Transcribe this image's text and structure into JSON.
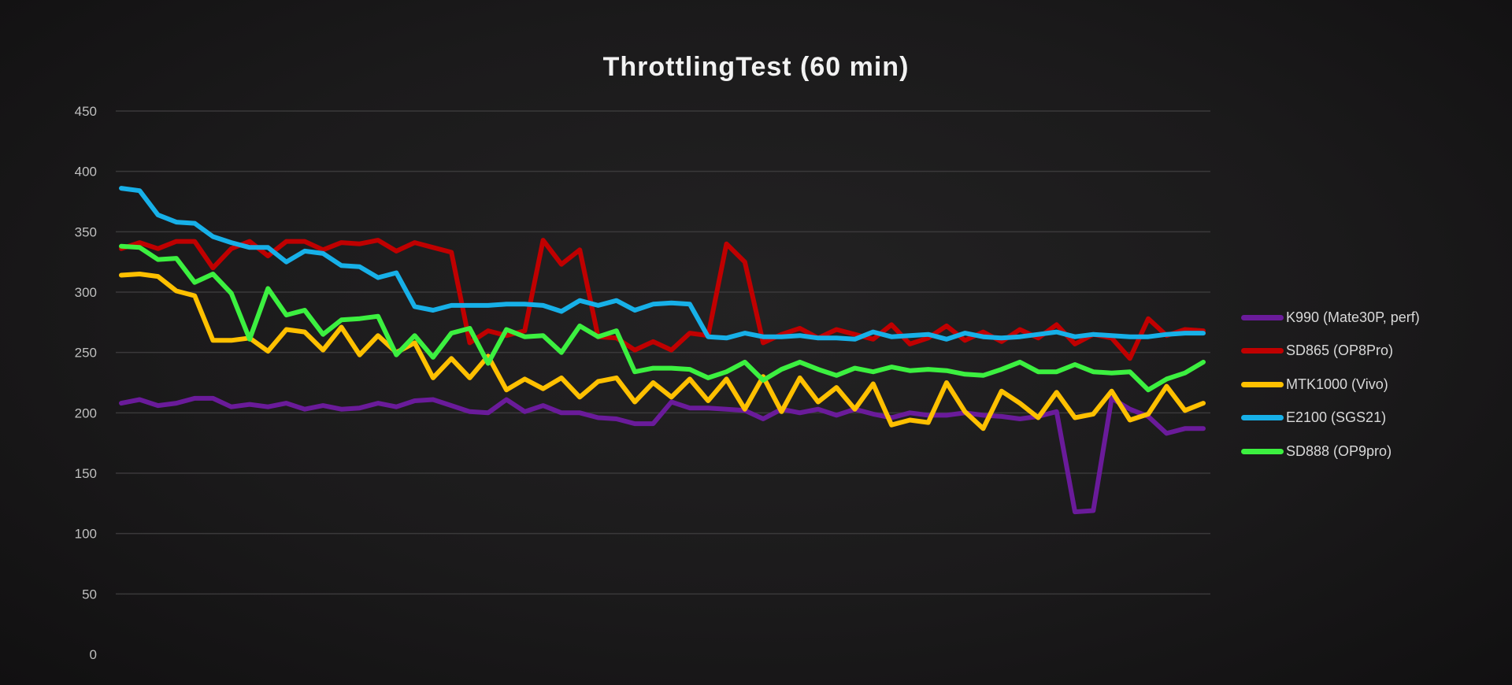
{
  "chart_data": {
    "type": "line",
    "title": "ThrottlingTest (60 min)",
    "xlabel": "",
    "ylabel": "",
    "ylim": [
      0,
      450
    ],
    "yticks": [
      0,
      50,
      100,
      150,
      200,
      250,
      300,
      350,
      400,
      450
    ],
    "grid": true,
    "legend_position": "right",
    "x": [
      1,
      2,
      3,
      4,
      5,
      6,
      7,
      8,
      9,
      10,
      11,
      12,
      13,
      14,
      15,
      16,
      17,
      18,
      19,
      20,
      21,
      22,
      23,
      24,
      25,
      26,
      27,
      28,
      29,
      30,
      31,
      32,
      33,
      34,
      35,
      36,
      37,
      38,
      39,
      40,
      41,
      42,
      43,
      44,
      45,
      46,
      47,
      48,
      49,
      50,
      51,
      52,
      53,
      54,
      55,
      56,
      57,
      58,
      59,
      60
    ],
    "series": [
      {
        "name": "K990 (Mate30P, perf)",
        "color": "#6a1b9a",
        "values": [
          208,
          211,
          206,
          208,
          212,
          212,
          205,
          207,
          205,
          208,
          203,
          206,
          203,
          204,
          208,
          205,
          210,
          211,
          206,
          201,
          200,
          211,
          201,
          206,
          200,
          200,
          196,
          195,
          191,
          191,
          209,
          204,
          204,
          203,
          202,
          195,
          203,
          200,
          203,
          198,
          203,
          199,
          196,
          200,
          198,
          198,
          200,
          198,
          197,
          195,
          197,
          201,
          118,
          119,
          212,
          203,
          197,
          183,
          187,
          187
        ]
      },
      {
        "name": "SD865 (OP8Pro)",
        "color": "#c00000",
        "values": [
          336,
          341,
          336,
          342,
          342,
          320,
          336,
          342,
          330,
          342,
          342,
          335,
          341,
          340,
          343,
          334,
          341,
          337,
          333,
          258,
          268,
          264,
          268,
          343,
          323,
          335,
          263,
          262,
          252,
          259,
          252,
          266,
          264,
          340,
          325,
          258,
          265,
          270,
          262,
          269,
          265,
          261,
          273,
          257,
          262,
          272,
          260,
          267,
          259,
          269,
          262,
          273,
          257,
          265,
          262,
          245,
          278,
          264,
          269,
          268
        ]
      },
      {
        "name": "MTK1000 (Vivo)",
        "color": "#ffc000",
        "values": [
          314,
          315,
          313,
          301,
          297,
          260,
          260,
          262,
          251,
          269,
          267,
          252,
          271,
          248,
          264,
          250,
          258,
          229,
          245,
          229,
          247,
          219,
          228,
          220,
          229,
          213,
          226,
          229,
          209,
          225,
          213,
          228,
          210,
          228,
          203,
          230,
          201,
          229,
          209,
          221,
          203,
          224,
          190,
          194,
          192,
          225,
          201,
          187,
          218,
          208,
          196,
          217,
          196,
          199,
          218,
          194,
          199,
          222,
          202,
          208
        ]
      },
      {
        "name": "E2100 (SGS21)",
        "color": "#17b0e8",
        "values": [
          386,
          384,
          364,
          358,
          357,
          346,
          341,
          337,
          337,
          325,
          334,
          332,
          322,
          321,
          312,
          316,
          288,
          285,
          289,
          289,
          289,
          290,
          290,
          289,
          284,
          293,
          289,
          293,
          285,
          290,
          291,
          290,
          263,
          262,
          266,
          263,
          263,
          264,
          262,
          262,
          261,
          267,
          263,
          264,
          265,
          261,
          266,
          263,
          262,
          263,
          265,
          267,
          263,
          265,
          264,
          263,
          263,
          265,
          266,
          266
        ]
      },
      {
        "name": "SD888 (OP9pro)",
        "color": "#3cf040",
        "values": [
          338,
          337,
          327,
          328,
          308,
          315,
          299,
          261,
          303,
          281,
          285,
          265,
          277,
          278,
          280,
          248,
          264,
          246,
          266,
          270,
          241,
          269,
          263,
          264,
          250,
          272,
          263,
          268,
          234,
          237,
          237,
          236,
          229,
          234,
          242,
          227,
          236,
          242,
          236,
          231,
          237,
          234,
          238,
          235,
          236,
          235,
          232,
          231,
          236,
          242,
          234,
          234,
          240,
          234,
          233,
          234,
          219,
          228,
          233,
          242
        ]
      }
    ]
  }
}
